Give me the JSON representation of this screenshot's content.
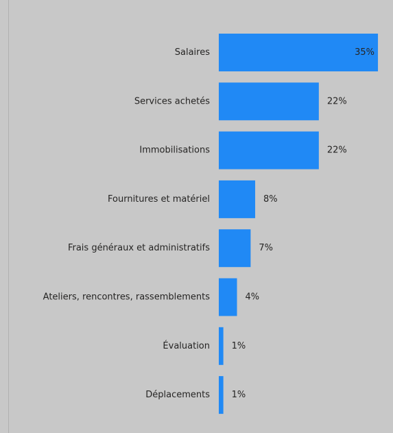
{
  "chart_data": {
    "type": "bar",
    "orientation": "horizontal",
    "categories": [
      "Salaires",
      "Services achetés",
      "Immobilisations",
      "Fournitures et matériel",
      "Frais généraux et administratifs",
      "Ateliers, rencontres, rassemblements",
      "Évaluation",
      "Déplacements"
    ],
    "values": [
      35,
      22,
      22,
      8,
      7,
      4,
      1,
      1
    ],
    "value_labels": [
      "35%",
      "22%",
      "22%",
      "8%",
      "7%",
      "4%",
      "1%",
      "1%"
    ],
    "color": "#2089f5"
  }
}
